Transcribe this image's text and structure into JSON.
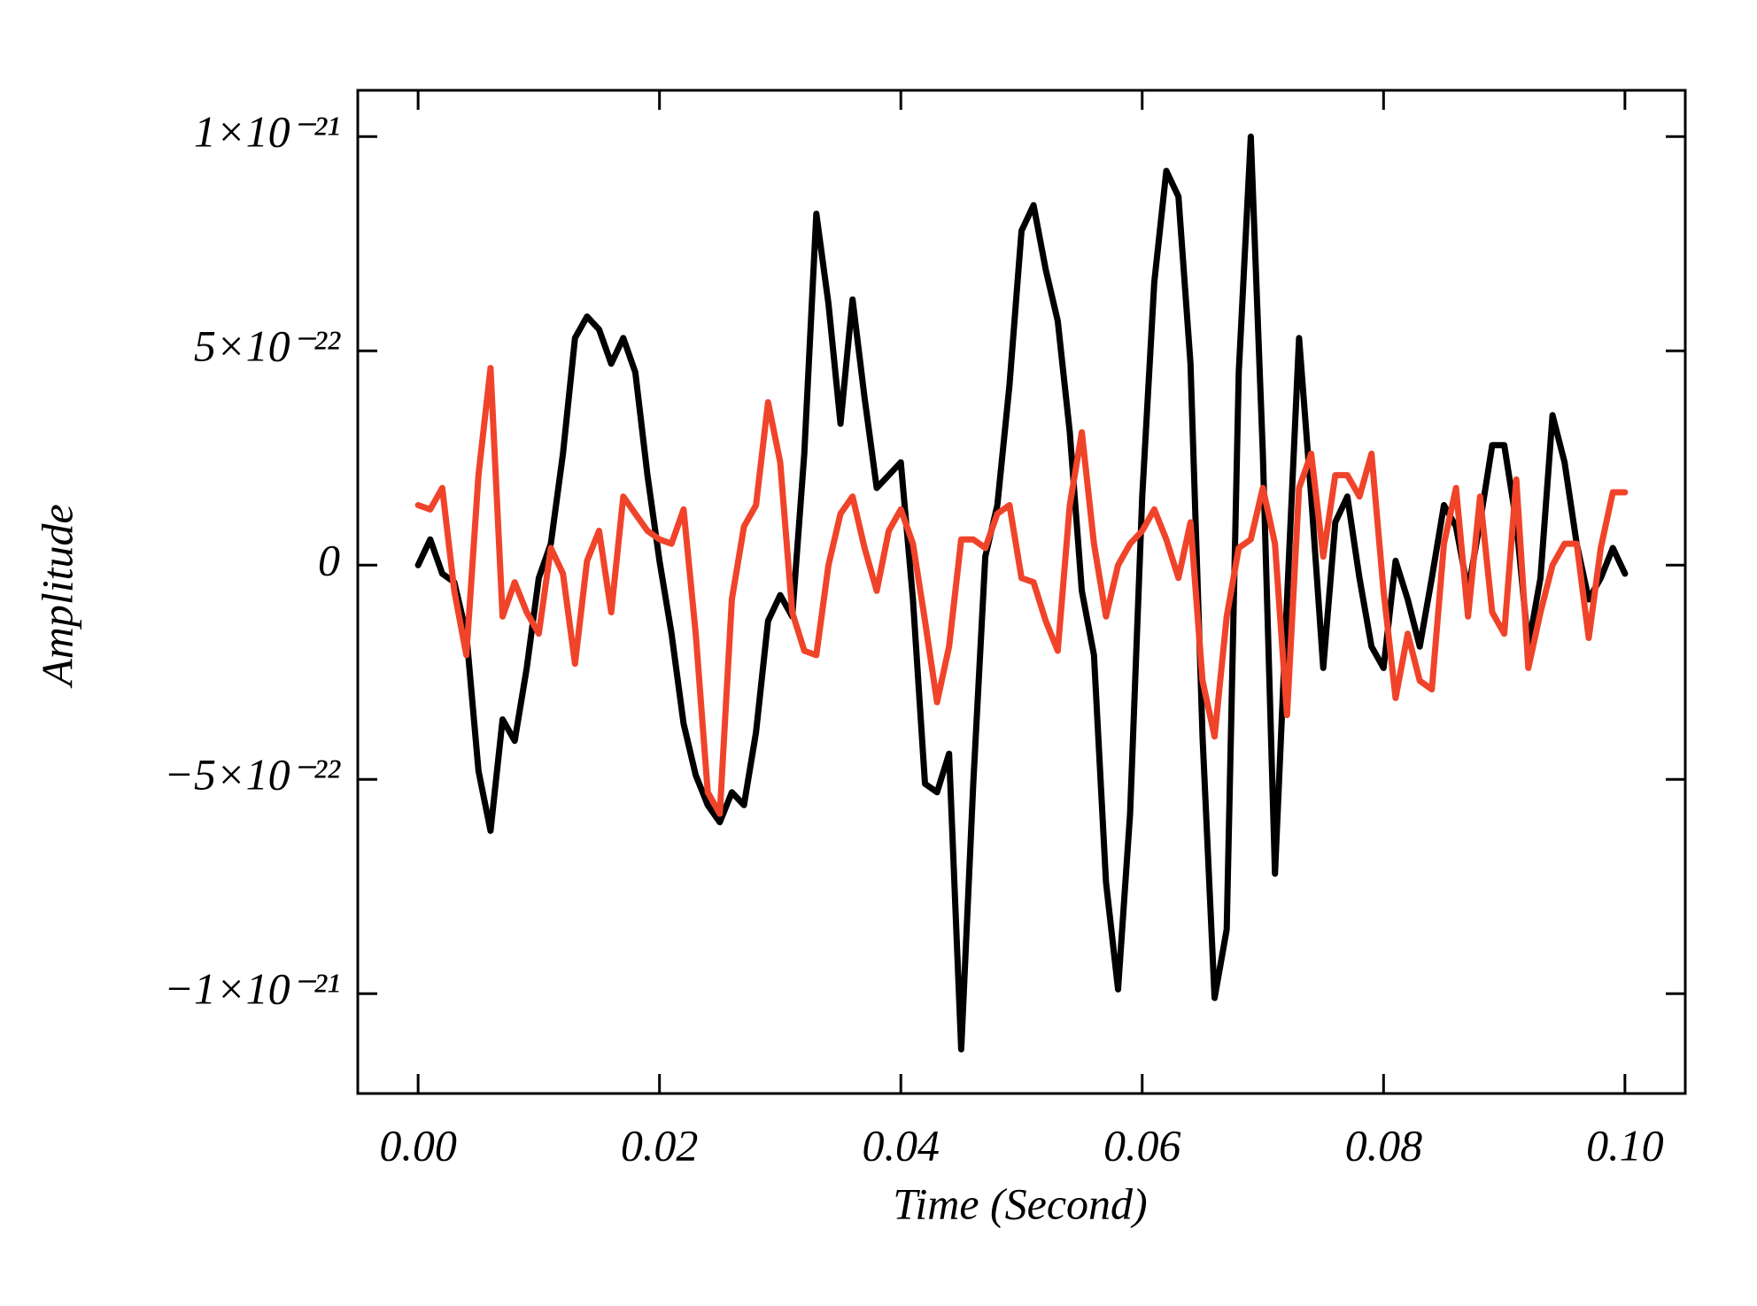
{
  "chart_data": {
    "type": "line",
    "xlabel": "Time (Second)",
    "ylabel": "Amplitude",
    "x": [
      0,
      0.001,
      0.002,
      0.003,
      0.004,
      0.005,
      0.006,
      0.007,
      0.008,
      0.009,
      0.01,
      0.011,
      0.012,
      0.013,
      0.014,
      0.015,
      0.016,
      0.017,
      0.018,
      0.019,
      0.02,
      0.021,
      0.022,
      0.023,
      0.024,
      0.025,
      0.026,
      0.027,
      0.028,
      0.029,
      0.03,
      0.031,
      0.032,
      0.033,
      0.034,
      0.035,
      0.036,
      0.037,
      0.038,
      0.039,
      0.04,
      0.041,
      0.042,
      0.043,
      0.044,
      0.045,
      0.046,
      0.047,
      0.048,
      0.049,
      0.05,
      0.051,
      0.052,
      0.053,
      0.054,
      0.055,
      0.056,
      0.057,
      0.058,
      0.059,
      0.06,
      0.061,
      0.062,
      0.063,
      0.064,
      0.065,
      0.066,
      0.067,
      0.068,
      0.069,
      0.07,
      0.071,
      0.072,
      0.073,
      0.074,
      0.075,
      0.076,
      0.077,
      0.078,
      0.079,
      0.08,
      0.081,
      0.082,
      0.083,
      0.084,
      0.085,
      0.086,
      0.087,
      0.088,
      0.089,
      0.09,
      0.091,
      0.092,
      0.093,
      0.094,
      0.095,
      0.096,
      0.097,
      0.098,
      0.099,
      0.1
    ],
    "series": [
      {
        "color": "#000000",
        "values": [
          0,
          6e-23,
          -2e-23,
          -4e-23,
          -1.6e-22,
          -4.8e-22,
          -6.2e-22,
          -3.6e-22,
          -4.1e-22,
          -2.4e-22,
          -3e-23,
          5e-23,
          2.6e-22,
          5.3e-22,
          5.8e-22,
          5.5e-22,
          4.7e-22,
          5.3e-22,
          4.5e-22,
          2.1e-22,
          1e-23,
          -1.6e-22,
          -3.7e-22,
          -4.9e-22,
          -5.6e-22,
          -6e-22,
          -5.3e-22,
          -5.6e-22,
          -3.9e-22,
          -1.3e-22,
          -7e-23,
          -1.2e-22,
          2.6e-22,
          8.2e-22,
          6.1e-22,
          3.3e-22,
          6.2e-22,
          3.9e-22,
          1.8e-22,
          2.1e-22,
          2.4e-22,
          -8e-23,
          -5.1e-22,
          -5.3e-22,
          -4.4e-22,
          -1.13e-21,
          -5.1e-22,
          2e-23,
          1.4e-22,
          4.2e-22,
          7.8e-22,
          8.4e-22,
          6.9e-22,
          5.7e-22,
          3.1e-22,
          -6e-23,
          -2.1e-22,
          -7.4e-22,
          -9.9e-22,
          -5.8e-22,
          1.6e-22,
          6.6e-22,
          9.2e-22,
          8.6e-22,
          4.7e-22,
          -4e-22,
          -1.01e-21,
          -8.5e-22,
          4.5e-22,
          1e-21,
          2.6e-22,
          -7.2e-22,
          -8e-23,
          5.3e-22,
          1.6e-22,
          -2.4e-22,
          1e-22,
          1.6e-22,
          -3e-23,
          -1.9e-22,
          -2.4e-22,
          1e-23,
          -8e-23,
          -1.9e-22,
          -3e-23,
          1.4e-22,
          9e-23,
          -6e-23,
          1e-22,
          2.8e-22,
          2.8e-22,
          1e-22,
          -1.9e-22,
          -3e-23,
          3.5e-22,
          2.4e-22,
          5e-23,
          -8e-23,
          -3e-23,
          4e-23,
          -2e-23
        ]
      },
      {
        "color": "#f0442a",
        "values": [
          1.4e-22,
          1.3e-22,
          1.8e-22,
          -6e-23,
          -2.1e-22,
          2.1e-22,
          4.6e-22,
          -1.2e-22,
          -4e-23,
          -1.1e-22,
          -1.6e-22,
          4e-23,
          -2e-23,
          -2.3e-22,
          1e-23,
          8e-23,
          -1.1e-22,
          1.6e-22,
          1.2e-22,
          8e-23,
          6e-23,
          5e-23,
          1.3e-22,
          -1.6e-22,
          -5.3e-22,
          -5.8e-22,
          -8e-23,
          9e-23,
          1.4e-22,
          3.8e-22,
          2.4e-22,
          -1.1e-22,
          -2e-22,
          -2.1e-22,
          0,
          1.2e-22,
          1.6e-22,
          4e-23,
          -6e-23,
          8e-23,
          1.3e-22,
          5e-23,
          -1.3e-22,
          -3.2e-22,
          -1.9e-22,
          6e-23,
          6e-23,
          4e-23,
          1.2e-22,
          1.4e-22,
          -3e-23,
          -4e-23,
          -1.3e-22,
          -2e-22,
          1.4e-22,
          3.1e-22,
          5e-23,
          -1.2e-22,
          0,
          5e-23,
          8e-23,
          1.3e-22,
          6e-23,
          -3e-23,
          1e-22,
          -2.7e-22,
          -4e-22,
          -1.2e-22,
          4e-23,
          6e-23,
          1.8e-22,
          5e-23,
          -3.5e-22,
          1.8e-22,
          2.6e-22,
          2e-23,
          2.1e-22,
          2.1e-22,
          1.6e-22,
          2.6e-22,
          -6e-23,
          -3.1e-22,
          -1.6e-22,
          -2.7e-22,
          -2.9e-22,
          5e-23,
          1.8e-22,
          -1.2e-22,
          1.6e-22,
          -1.1e-22,
          -1.6e-22,
          2e-22,
          -2.4e-22,
          -1.1e-22,
          0,
          5e-23,
          5e-23,
          -1.7e-22,
          4e-23,
          1.7e-22,
          1.7e-22
        ]
      }
    ],
    "xlim": [
      -0.005,
      0.105
    ],
    "ylim": [
      -1.233e-21,
      1.108e-21
    ],
    "xticks": [
      {
        "value": 0,
        "label": "0.00"
      },
      {
        "value": 0.02,
        "label": "0.02"
      },
      {
        "value": 0.04,
        "label": "0.04"
      },
      {
        "value": 0.06,
        "label": "0.06"
      },
      {
        "value": 0.08,
        "label": "0.08"
      },
      {
        "value": 0.1,
        "label": "0.10"
      }
    ],
    "yticks": [
      {
        "value": -1e-21,
        "label": "−1×10⁻²¹"
      },
      {
        "value": -5e-22,
        "label": "−5×10⁻²²"
      },
      0,
      {
        "value": 5e-22,
        "label": "5×10⁻²²"
      },
      {
        "value": 1e-21,
        "label": "1×10⁻²¹"
      }
    ]
  }
}
